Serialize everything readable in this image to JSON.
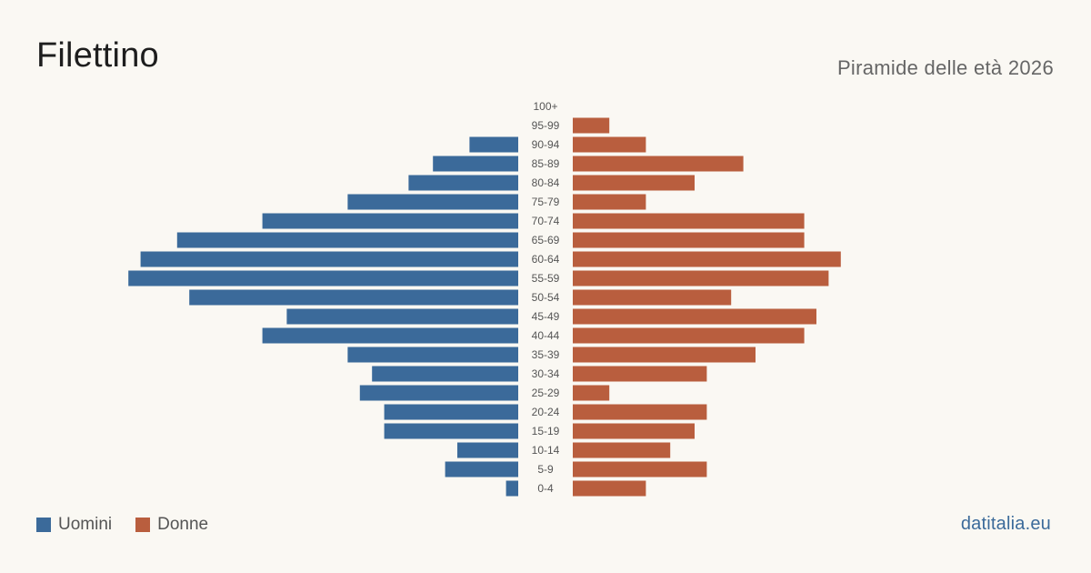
{
  "header": {
    "title": "Filettino",
    "subtitle": "Piramide delle età 2026"
  },
  "legend": {
    "men_label": "Uomini",
    "women_label": "Donne"
  },
  "footer": {
    "source": "datitalia.eu"
  },
  "chart_data": {
    "type": "bar",
    "orientation": "horizontal-pyramid",
    "categories": [
      "100+",
      "95-99",
      "90-94",
      "85-89",
      "80-84",
      "75-79",
      "70-74",
      "65-69",
      "60-64",
      "55-59",
      "50-54",
      "45-49",
      "40-44",
      "35-39",
      "30-34",
      "25-29",
      "20-24",
      "15-19",
      "10-14",
      "5-9",
      "0-4"
    ],
    "series": [
      {
        "name": "Uomini",
        "color": "#3b6a9a",
        "values": [
          0,
          0,
          4,
          7,
          9,
          14,
          21,
          28,
          31,
          32,
          27,
          19,
          21,
          14,
          12,
          13,
          11,
          11,
          5,
          6,
          1
        ]
      },
      {
        "name": "Donne",
        "color": "#b95e3e",
        "values": [
          0,
          3,
          6,
          14,
          10,
          6,
          19,
          19,
          22,
          21,
          13,
          20,
          19,
          15,
          11,
          3,
          11,
          10,
          8,
          11,
          6
        ]
      }
    ],
    "legend_position": "bottom-left",
    "grid": false
  }
}
